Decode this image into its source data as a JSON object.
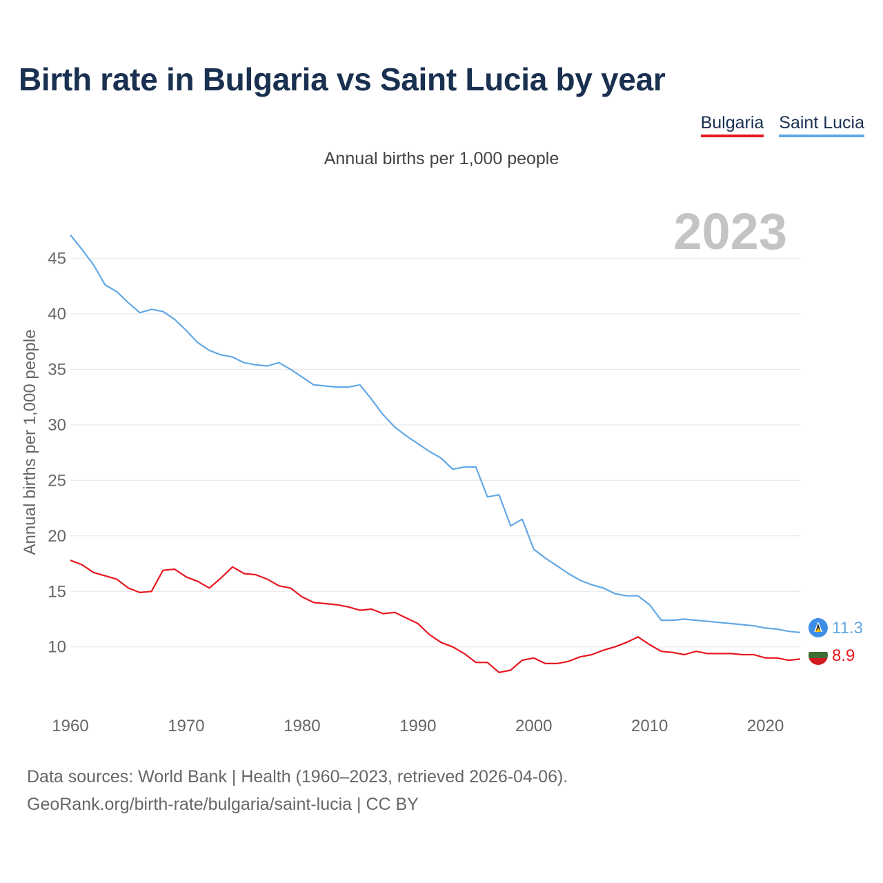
{
  "title": "Birth rate in Bulgaria vs Saint Lucia by year",
  "subtitle": "Annual births per 1,000 people",
  "year_badge": "2023",
  "legend": [
    {
      "label": "Bulgaria",
      "color": "#e8171f"
    },
    {
      "label": "Saint Lucia",
      "color": "#62a8e5"
    }
  ],
  "sources": {
    "line1": "Data sources: World Bank | Health (1960–2023, retrieved 2026-04-06).",
    "line2": "GeoRank.org/birth-rate/bulgaria/saint-lucia | CC BY"
  },
  "chart_data": {
    "type": "line",
    "title": "Birth rate in Bulgaria vs Saint Lucia by year",
    "xlabel": "",
    "ylabel": "Annual births per 1,000 people",
    "xlim": [
      1960,
      2023
    ],
    "ylim": [
      5.2,
      49
    ],
    "xticks": [
      1960,
      1970,
      1980,
      1990,
      2000,
      2010,
      2020
    ],
    "yticks": [
      10,
      15,
      20,
      25,
      30,
      35,
      40,
      45
    ],
    "grid": true,
    "x": [
      1960,
      1961,
      1962,
      1963,
      1964,
      1965,
      1966,
      1967,
      1968,
      1969,
      1970,
      1971,
      1972,
      1973,
      1974,
      1975,
      1976,
      1977,
      1978,
      1979,
      1980,
      1981,
      1982,
      1983,
      1984,
      1985,
      1986,
      1987,
      1988,
      1989,
      1990,
      1991,
      1992,
      1993,
      1994,
      1995,
      1996,
      1997,
      1998,
      1999,
      2000,
      2001,
      2002,
      2003,
      2004,
      2005,
      2006,
      2007,
      2008,
      2009,
      2010,
      2011,
      2012,
      2013,
      2014,
      2015,
      2016,
      2017,
      2018,
      2019,
      2020,
      2021,
      2022,
      2023
    ],
    "series": [
      {
        "name": "Bulgaria",
        "color": "#e8171f",
        "end_label": "8.9",
        "flag": "bulgaria-flag",
        "values": [
          17.8,
          17.4,
          16.7,
          16.4,
          16.1,
          15.3,
          14.9,
          15.0,
          16.9,
          17.0,
          16.3,
          15.9,
          15.3,
          16.2,
          17.2,
          16.6,
          16.5,
          16.1,
          15.5,
          15.3,
          14.5,
          14.0,
          13.9,
          13.8,
          13.6,
          13.3,
          13.4,
          13.0,
          13.1,
          12.6,
          12.1,
          11.1,
          10.4,
          10.0,
          9.4,
          8.6,
          8.6,
          7.7,
          7.9,
          8.8,
          9.0,
          8.5,
          8.5,
          8.7,
          9.1,
          9.3,
          9.7,
          10.0,
          10.4,
          10.9,
          10.2,
          9.6,
          9.5,
          9.3,
          9.6,
          9.4,
          9.4,
          9.4,
          9.3,
          9.3,
          9.0,
          9.0,
          8.8,
          8.9
        ]
      },
      {
        "name": "Saint Lucia",
        "color": "#62a8e5",
        "end_label": "11.3",
        "flag": "saint-lucia-flag",
        "values": [
          47.1,
          45.8,
          44.4,
          42.6,
          42.0,
          41.0,
          40.1,
          40.4,
          40.2,
          39.5,
          38.5,
          37.4,
          36.7,
          36.3,
          36.1,
          35.6,
          35.4,
          35.3,
          35.6,
          35.0,
          34.3,
          33.6,
          33.5,
          33.4,
          33.4,
          33.6,
          32.3,
          30.9,
          29.8,
          29.0,
          28.3,
          27.6,
          27.0,
          26.0,
          26.2,
          26.2,
          23.5,
          23.7,
          20.9,
          21.5,
          18.8,
          18.0,
          17.3,
          16.6,
          16.0,
          15.6,
          15.3,
          14.8,
          14.6,
          14.6,
          13.8,
          12.4,
          12.4,
          12.5,
          12.4,
          12.3,
          12.2,
          12.1,
          12.0,
          11.9,
          11.7,
          11.6,
          11.4,
          11.3
        ]
      }
    ]
  }
}
